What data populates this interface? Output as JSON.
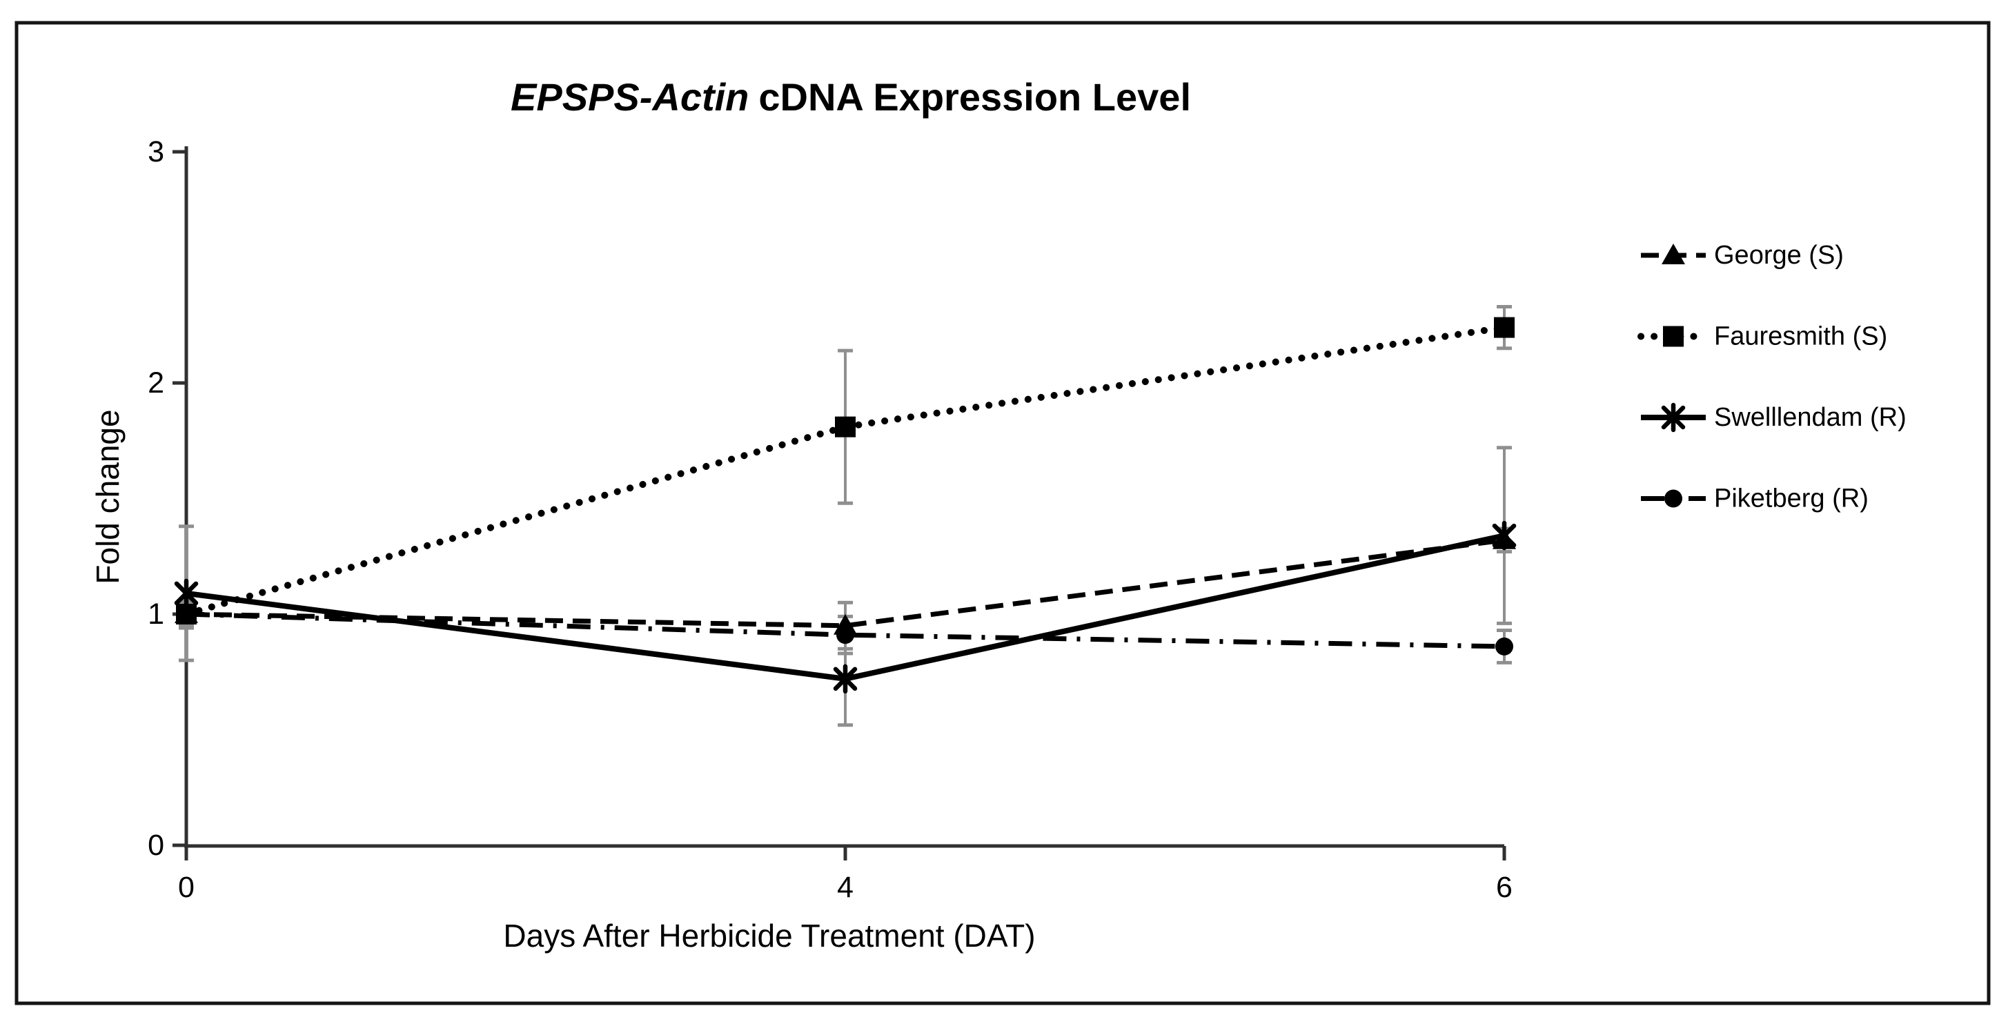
{
  "figure": {
    "title_italic": "EPSPS-Actin",
    "title_rest": "cDNA Expression Level"
  },
  "chart_data": {
    "type": "line",
    "title": "EPSPS-Actin cDNA Expression Level",
    "title_italic_segment": "EPSPS-Actin",
    "xlabel": "Days After Herbicide Treatment (DAT)",
    "ylabel": "Fold change",
    "categories": [
      "0",
      "4",
      "6"
    ],
    "ylim": [
      0,
      3
    ],
    "yticks": [
      0,
      1,
      2,
      3
    ],
    "grid": false,
    "legend_position": "right",
    "line_color": "#000000",
    "error_bar_color": "#8f8f8f",
    "series": [
      {
        "name": "George (S)",
        "marker": "triangle",
        "line_style": "dashed",
        "values": [
          1.0,
          0.95,
          1.32
        ],
        "errors": [
          0.06,
          0.1,
          0.05
        ]
      },
      {
        "name": "Fauresmith (S)",
        "marker": "square",
        "line_style": "dotted",
        "values": [
          1.0,
          1.81,
          2.24
        ],
        "errors": [
          0.05,
          0.33,
          0.09
        ]
      },
      {
        "name": "Swelllendam (R)",
        "marker": "asterisk",
        "line_style": "solid",
        "values": [
          1.09,
          0.72,
          1.34
        ],
        "errors": [
          0.29,
          0.2,
          0.38
        ]
      },
      {
        "name": "Piketberg (R)",
        "marker": "circle",
        "line_style": "dashdot",
        "values": [
          1.0,
          0.91,
          0.86
        ],
        "errors": [
          0.05,
          0.08,
          0.07
        ]
      }
    ]
  }
}
